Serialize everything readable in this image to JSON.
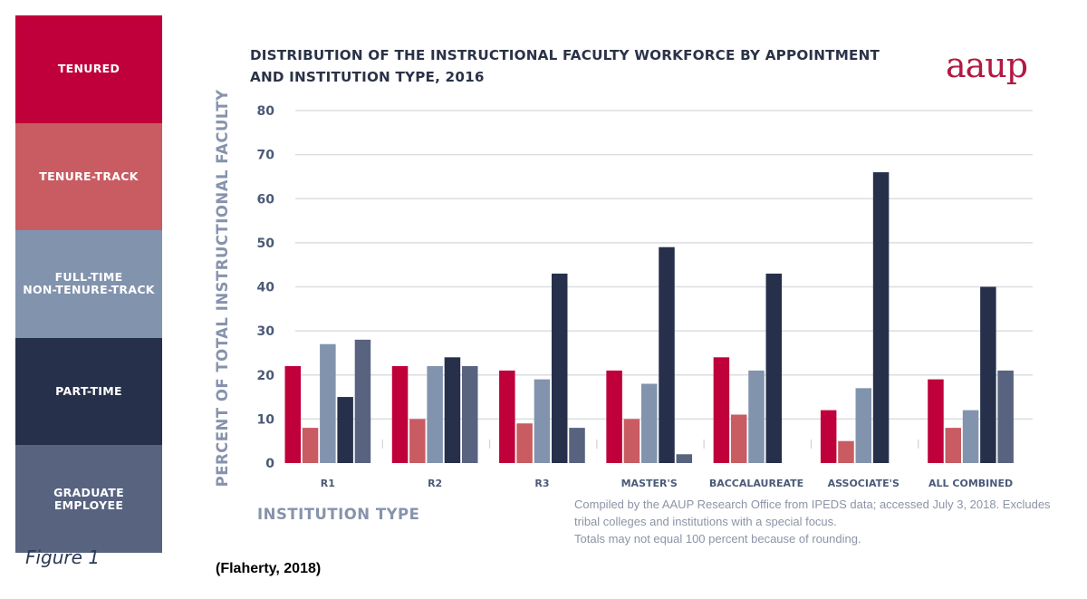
{
  "legend": {
    "items": [
      {
        "label": "TENURED",
        "color": "#c0003a"
      },
      {
        "label": "TENURE-TRACK",
        "color": "#c85c62"
      },
      {
        "label": "FULL-TIME\nNON-TENURE-TRACK",
        "color": "#8293ae"
      },
      {
        "label": "PART-TIME",
        "color": "#27304a"
      },
      {
        "label": "GRADUATE\nEMPLOYEE",
        "color": "#586380"
      }
    ]
  },
  "figure_label": "Figure 1",
  "citation": "(Flaherty, 2018)",
  "logo": "aaup",
  "source_note": {
    "lines": [
      "Compiled by the AAUP Research Office from IPEDS data; accessed July 3, 2018.  Excludes",
      "tribal colleges and institutions with a special focus.",
      "Totals may not equal 100 percent because of rounding."
    ]
  },
  "chart_data": {
    "type": "bar",
    "title": "DISTRIBUTION OF THE INSTRUCTIONAL FACULTY WORKFORCE BY APPOINTMENT AND INSTITUTION TYPE, 2016",
    "xlabel": "INSTITUTION TYPE",
    "ylabel": "PERCENT OF TOTAL INSTRUCTIONAL FACULTY",
    "ylim": [
      0,
      80
    ],
    "yticks": [
      0,
      10,
      20,
      30,
      40,
      50,
      60,
      70,
      80
    ],
    "grid": true,
    "legend_position": "left",
    "categories": [
      "R1",
      "R2",
      "R3",
      "MASTER'S",
      "BACCALAUREATE",
      "ASSOCIATE'S",
      "ALL COMBINED"
    ],
    "series": [
      {
        "name": "Tenured",
        "color": "#c0003a",
        "values": [
          22,
          22,
          21,
          21,
          24,
          12,
          19
        ]
      },
      {
        "name": "Tenure-Track",
        "color": "#c85c62",
        "values": [
          8,
          10,
          9,
          10,
          11,
          5,
          8
        ]
      },
      {
        "name": "Full-Time Non-Tenure-Track",
        "color": "#8293ae",
        "values": [
          27,
          22,
          19,
          18,
          21,
          17,
          12
        ]
      },
      {
        "name": "Part-Time",
        "color": "#27304a",
        "values": [
          15,
          24,
          43,
          49,
          43,
          66,
          40
        ]
      },
      {
        "name": "Graduate Employee",
        "color": "#586380",
        "values": [
          28,
          22,
          8,
          2,
          0,
          0,
          21
        ]
      }
    ]
  }
}
